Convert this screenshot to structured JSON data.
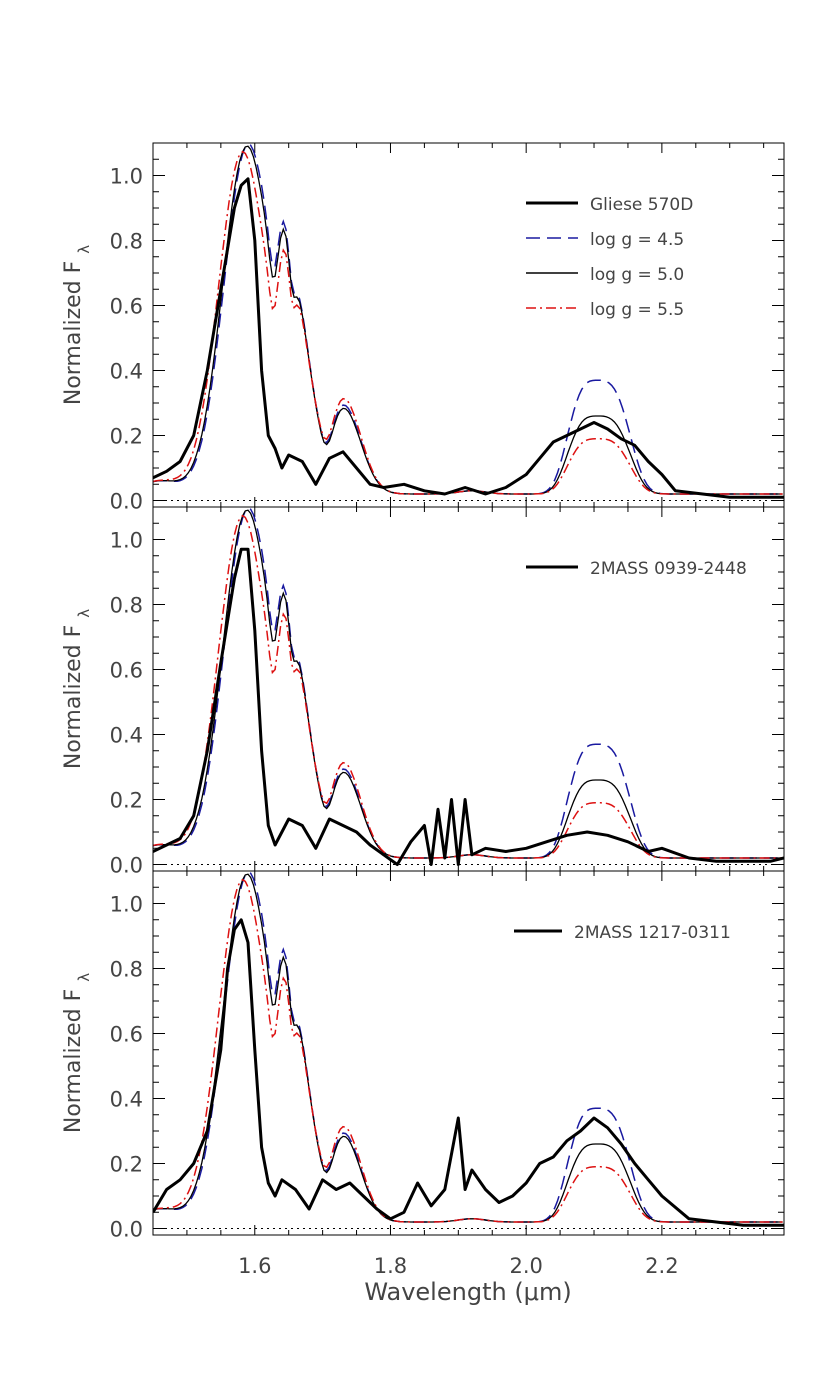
{
  "chart_data": {
    "type": "line",
    "xlabel": "Wavelength (μm)",
    "ylabel": "Normalized F",
    "ylabel_subscript": "λ",
    "xlim": [
      1.45,
      2.38
    ],
    "ylim": [
      -0.02,
      1.1
    ],
    "x_ticks": [
      "1.6",
      "1.8",
      "2.0",
      "2.2"
    ],
    "x_tick_values": [
      1.6,
      1.8,
      2.0,
      2.2
    ],
    "y_ticks": [
      "0.0",
      "0.2",
      "0.4",
      "0.6",
      "0.8",
      "1.0"
    ],
    "y_tick_values": [
      0.0,
      0.2,
      0.4,
      0.6,
      0.8,
      1.0
    ],
    "reference_line": 0.0,
    "colors": {
      "observed": "#000000",
      "logg_4_5": "#1a1aa0",
      "logg_5_0": "#000000",
      "logg_5_5": "#dd1111"
    },
    "legend_entries": [
      "log g = 4.5",
      "log g = 5.0",
      "log g = 5.5"
    ],
    "panels": [
      {
        "object_name": "Gliese 570D",
        "show_model_legend": true,
        "model_peaks": {
          "logg_4_5": [
            0.35,
            0.26,
            0.55,
            0.47
          ],
          "logg_5_0": [
            0.24,
            0.25,
            0.55,
            0.47
          ],
          "logg_5_5": [
            0.17,
            0.28,
            0.55,
            0.47
          ]
        },
        "observed": {
          "x": [
            1.45,
            1.47,
            1.49,
            1.51,
            1.53,
            1.55,
            1.57,
            1.58,
            1.59,
            1.6,
            1.61,
            1.62,
            1.63,
            1.64,
            1.65,
            1.67,
            1.69,
            1.71,
            1.73,
            1.75,
            1.77,
            1.79,
            1.82,
            1.85,
            1.88,
            1.91,
            1.94,
            1.97,
            2.0,
            2.02,
            2.04,
            2.06,
            2.08,
            2.1,
            2.12,
            2.14,
            2.16,
            2.18,
            2.2,
            2.22,
            2.26,
            2.3,
            2.34,
            2.38
          ],
          "y": [
            0.07,
            0.09,
            0.12,
            0.2,
            0.4,
            0.65,
            0.9,
            0.97,
            0.99,
            0.8,
            0.4,
            0.2,
            0.16,
            0.1,
            0.14,
            0.12,
            0.05,
            0.13,
            0.15,
            0.1,
            0.05,
            0.04,
            0.05,
            0.03,
            0.02,
            0.04,
            0.02,
            0.04,
            0.08,
            0.13,
            0.18,
            0.2,
            0.22,
            0.24,
            0.22,
            0.19,
            0.17,
            0.12,
            0.08,
            0.03,
            0.02,
            0.01,
            0.01,
            0.01
          ]
        }
      },
      {
        "object_name": "2MASS 0939-2448",
        "show_model_legend": false,
        "model_peaks": {
          "logg_4_5": [
            0.35,
            0.26,
            0.55,
            0.47
          ],
          "logg_5_0": [
            0.24,
            0.25,
            0.55,
            0.47
          ],
          "logg_5_5": [
            0.17,
            0.28,
            0.55,
            0.47
          ]
        },
        "observed": {
          "x": [
            1.45,
            1.47,
            1.49,
            1.51,
            1.53,
            1.55,
            1.57,
            1.58,
            1.59,
            1.6,
            1.61,
            1.62,
            1.63,
            1.65,
            1.67,
            1.69,
            1.71,
            1.73,
            1.75,
            1.77,
            1.79,
            1.81,
            1.83,
            1.85,
            1.86,
            1.87,
            1.88,
            1.89,
            1.9,
            1.91,
            1.92,
            1.94,
            1.97,
            2.0,
            2.03,
            2.06,
            2.09,
            2.12,
            2.15,
            2.18,
            2.2,
            2.24,
            2.28,
            2.32,
            2.36,
            2.38
          ],
          "y": [
            0.04,
            0.06,
            0.08,
            0.15,
            0.35,
            0.62,
            0.88,
            0.97,
            0.97,
            0.72,
            0.35,
            0.12,
            0.06,
            0.14,
            0.12,
            0.05,
            0.14,
            0.12,
            0.1,
            0.06,
            0.03,
            0.0,
            0.07,
            0.12,
            0.0,
            0.17,
            0.02,
            0.2,
            0.0,
            0.2,
            0.03,
            0.05,
            0.04,
            0.05,
            0.07,
            0.09,
            0.1,
            0.09,
            0.07,
            0.04,
            0.05,
            0.02,
            0.01,
            0.01,
            0.01,
            0.02
          ]
        }
      },
      {
        "object_name": "2MASS 1217-0311",
        "show_model_legend": false,
        "model_peaks": {
          "logg_4_5": [
            0.35,
            0.26,
            0.55,
            0.47
          ],
          "logg_5_0": [
            0.24,
            0.25,
            0.55,
            0.47
          ],
          "logg_5_5": [
            0.17,
            0.28,
            0.55,
            0.47
          ]
        },
        "observed": {
          "x": [
            1.45,
            1.47,
            1.49,
            1.51,
            1.53,
            1.55,
            1.56,
            1.57,
            1.58,
            1.59,
            1.6,
            1.61,
            1.62,
            1.63,
            1.64,
            1.66,
            1.68,
            1.7,
            1.72,
            1.74,
            1.76,
            1.78,
            1.8,
            1.82,
            1.84,
            1.86,
            1.88,
            1.9,
            1.91,
            1.92,
            1.94,
            1.96,
            1.98,
            2.0,
            2.02,
            2.04,
            2.06,
            2.08,
            2.1,
            2.12,
            2.14,
            2.16,
            2.18,
            2.2,
            2.24,
            2.28,
            2.32,
            2.36,
            2.38
          ],
          "y": [
            0.05,
            0.12,
            0.15,
            0.2,
            0.3,
            0.55,
            0.8,
            0.92,
            0.95,
            0.88,
            0.55,
            0.25,
            0.14,
            0.1,
            0.15,
            0.12,
            0.06,
            0.15,
            0.12,
            0.14,
            0.1,
            0.06,
            0.03,
            0.05,
            0.14,
            0.07,
            0.12,
            0.34,
            0.12,
            0.18,
            0.12,
            0.08,
            0.1,
            0.14,
            0.2,
            0.22,
            0.27,
            0.3,
            0.34,
            0.31,
            0.26,
            0.2,
            0.15,
            0.1,
            0.03,
            0.02,
            0.01,
            0.01,
            0.01
          ]
        }
      }
    ]
  }
}
